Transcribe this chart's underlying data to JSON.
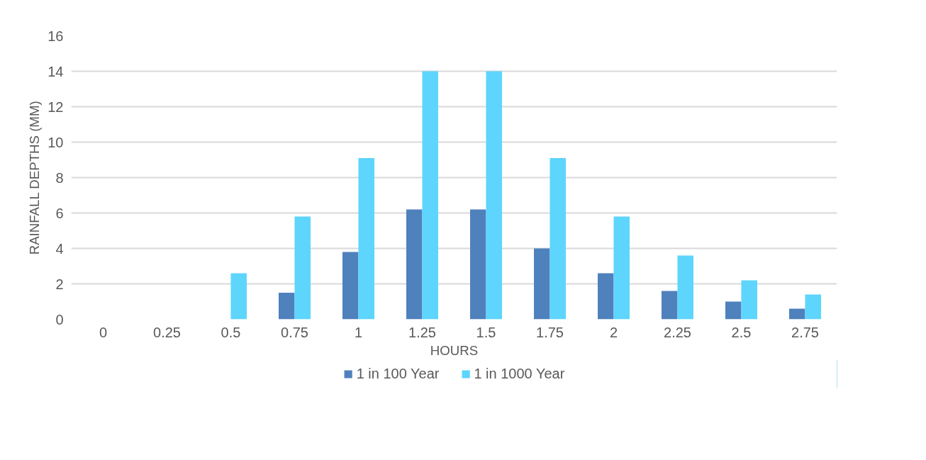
{
  "chart_data": {
    "type": "bar",
    "xlabel": "HOURS",
    "ylabel": "RAINFALL DEPTHS (MM)",
    "categories": [
      "0",
      "0.25",
      "0.5",
      "0.75",
      "1",
      "1.25",
      "1.5",
      "1.75",
      "2",
      "2.25",
      "2.5",
      "2.75"
    ],
    "series": [
      {
        "name": "1 in 100 Year",
        "color": "#4f81bd",
        "values": [
          0,
          0,
          0,
          1.5,
          3.8,
          6.2,
          6.2,
          4.0,
          2.6,
          1.6,
          1.0,
          0.6
        ]
      },
      {
        "name": "1 in 1000 Year",
        "color": "#5dd5fd",
        "values": [
          0,
          0,
          2.6,
          5.8,
          9.1,
          14,
          14,
          9.1,
          5.8,
          3.6,
          2.2,
          1.4
        ]
      }
    ],
    "ylim": [
      0,
      16
    ],
    "yticks": [
      0,
      2,
      4,
      6,
      8,
      10,
      12,
      14,
      16
    ],
    "grid": "y",
    "legend": "bottom"
  }
}
